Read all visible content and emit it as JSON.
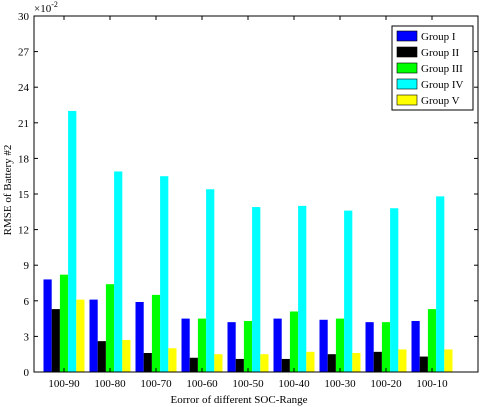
{
  "chart_data": {
    "type": "bar",
    "xlabel": "Eorror of different SOC-Range",
    "ylabel": "RMSE of Battery #2",
    "y_exponent_base": "×10",
    "y_exponent_power": "-2",
    "ylim": [
      0,
      30
    ],
    "yticks": [
      0,
      3,
      6,
      9,
      12,
      15,
      18,
      21,
      24,
      27,
      30
    ],
    "ytick_labels": [
      "0",
      "3",
      "6",
      "9",
      "12",
      "15",
      "18",
      "21",
      "24",
      "27",
      "30"
    ],
    "categories": [
      "100-90",
      "100-80",
      "100-70",
      "100-60",
      "100-50",
      "100-40",
      "100-30",
      "100-20",
      "100-10"
    ],
    "legend_position": "top-right",
    "grid": false,
    "series": [
      {
        "name": "Group I",
        "color": "#0000ff",
        "values": [
          7.8,
          6.1,
          5.9,
          4.5,
          4.2,
          4.5,
          4.4,
          4.2,
          4.3
        ]
      },
      {
        "name": "Group II",
        "color": "#000000",
        "values": [
          5.3,
          2.6,
          1.6,
          1.2,
          1.1,
          1.1,
          1.5,
          1.7,
          1.3
        ]
      },
      {
        "name": "Group III",
        "color": "#00ff00",
        "values": [
          8.2,
          7.4,
          6.5,
          4.5,
          4.3,
          5.1,
          4.5,
          4.2,
          5.3
        ]
      },
      {
        "name": "Group IV",
        "color": "#00ffff",
        "values": [
          22.0,
          16.9,
          16.5,
          15.4,
          13.9,
          14.0,
          13.6,
          13.8,
          14.8
        ]
      },
      {
        "name": "Group V",
        "color": "#ffff00",
        "values": [
          6.1,
          2.7,
          2.0,
          1.5,
          1.5,
          1.7,
          1.6,
          1.9,
          1.9
        ]
      }
    ]
  }
}
